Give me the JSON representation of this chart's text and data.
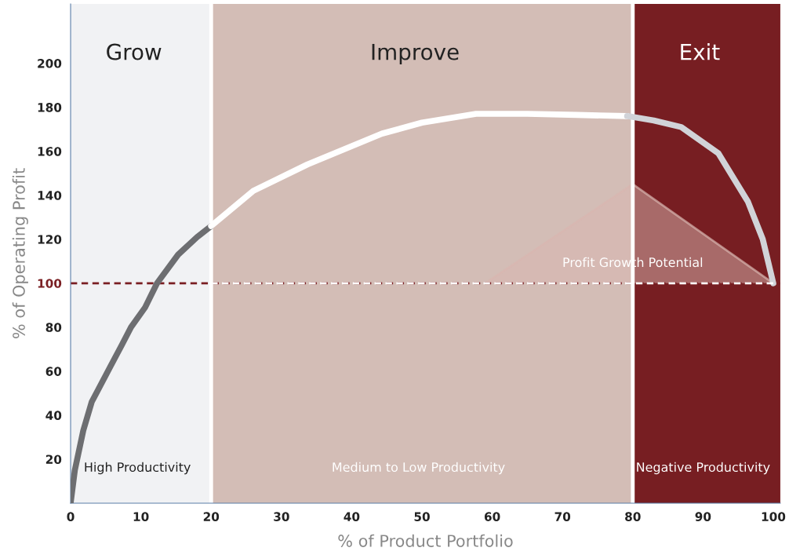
{
  "chart_data": {
    "type": "line",
    "xlabel": "% of Product Portfolio",
    "ylabel": "% of Operating Profit",
    "xlim": [
      0,
      101
    ],
    "ylim": [
      0,
      227
    ],
    "xticks": [
      0,
      10,
      20,
      30,
      40,
      50,
      60,
      70,
      80,
      90,
      100
    ],
    "yticks": [
      20,
      40,
      60,
      80,
      100,
      120,
      140,
      160,
      180,
      200
    ],
    "grid": false,
    "legend": false,
    "marker": "none",
    "line_style": "solid",
    "series": [
      {
        "color": "#6d6e71",
        "x": [
          0,
          0.6,
          1.8,
          3,
          5.8,
          7.3,
          8.6,
          10.6,
          12.3,
          15.3,
          18,
          20
        ],
        "values": [
          0,
          15,
          33,
          46,
          63,
          72,
          80,
          89,
          100,
          113,
          121,
          126
        ]
      },
      {
        "color": "#ffffff",
        "x": [
          20,
          26,
          33.7,
          44.3,
          50,
          57.7,
          65,
          72,
          79.2
        ],
        "values": [
          126,
          142,
          154,
          168,
          173,
          177,
          177,
          176.5,
          176
        ]
      },
      {
        "color": "#d1d3d8",
        "x": [
          79.2,
          83,
          86.9,
          92.2,
          96.4,
          98.5,
          100
        ],
        "values": [
          176,
          174,
          171,
          159,
          137,
          120,
          100
        ]
      },
      {
        "type": "area",
        "color": "#d9b6b0",
        "x": [
          59,
          80,
          100
        ],
        "values": [
          100,
          145,
          100
        ]
      },
      {
        "color": "#ffffff",
        "x": [
          20,
          100
        ],
        "values": [
          100,
          100
        ],
        "line_style": "dashed"
      }
    ],
    "bands": [
      {
        "axis": "x",
        "from": 0,
        "to": 20,
        "color": "#f1f2f4",
        "label": "Grow"
      },
      {
        "axis": "x",
        "from": 20,
        "to": 80,
        "color": "#d3bdb6",
        "label": "Improve"
      },
      {
        "axis": "x",
        "from": 80,
        "to": 101,
        "color": "#771e22",
        "label": "Exit"
      }
    ],
    "ref_lines": [
      {
        "axis": "y",
        "value": 100,
        "color": "#7a1f23",
        "line_style": "dashed"
      },
      {
        "axis": "x",
        "value": 20,
        "color": "#ffffff",
        "line_style": "solid"
      },
      {
        "axis": "x",
        "value": 80,
        "color": "#ffffff",
        "line_style": "solid"
      }
    ],
    "annotations": [
      "High Productivity",
      "Medium to Low Productivity",
      "Negative Productivity",
      "Profit Growth Potential"
    ]
  }
}
